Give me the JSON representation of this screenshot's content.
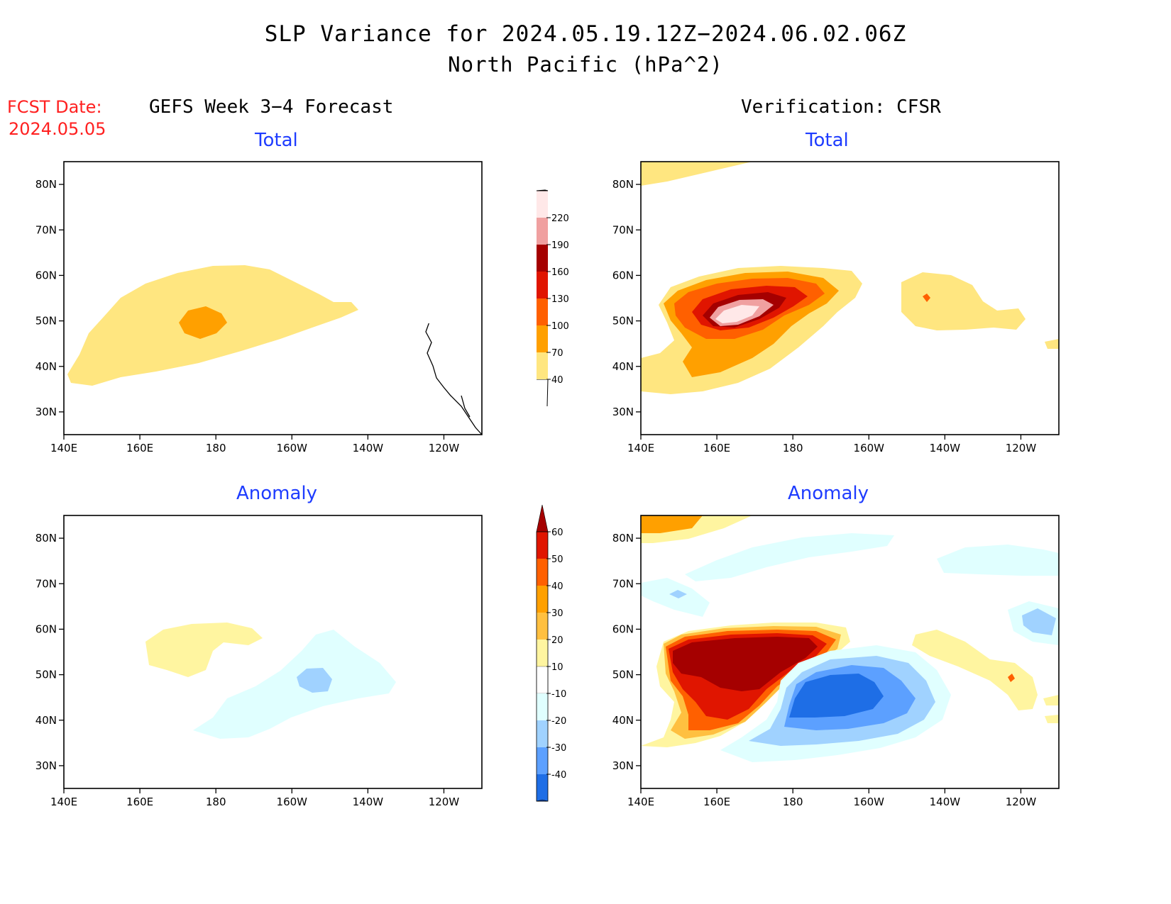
{
  "title_line1": "SLP Variance for 2024.05.19.12Z−2024.06.02.06Z",
  "title_line2": "North Pacific (hPa^2)",
  "fcst_label": "FCST Date:",
  "fcst_date": "2024.05.05",
  "columns": {
    "left": "GEFS Week 3−4 Forecast",
    "right": "Verification: CFSR"
  },
  "panels": [
    {
      "id": "gefs-total",
      "subtitle": "Total"
    },
    {
      "id": "cfsr-total",
      "subtitle": "Total"
    },
    {
      "id": "gefs-anomaly",
      "subtitle": "Anomaly"
    },
    {
      "id": "cfsr-anomaly",
      "subtitle": "Anomaly"
    }
  ],
  "axes": {
    "x_ticks": [
      "140E",
      "160E",
      "180",
      "160W",
      "140W",
      "120W"
    ],
    "y_ticks": [
      "80N",
      "70N",
      "60N",
      "50N",
      "40N",
      "30N"
    ],
    "lon_range": [
      140,
      250
    ],
    "lat_range": [
      25,
      85
    ]
  },
  "colorbars": {
    "total": {
      "levels": [
        40,
        70,
        100,
        130,
        160,
        190,
        220
      ],
      "colors": [
        "#ffe680",
        "#ffa000",
        "#ff6000",
        "#e01500",
        "#a50000",
        "#f0a0a0",
        "#ffe8e8"
      ]
    },
    "anomaly": {
      "levels": [
        60,
        50,
        40,
        30,
        20,
        10,
        -10,
        -20,
        -30,
        -40
      ],
      "colors_top_down": [
        "#a50000",
        "#e01500",
        "#ff6000",
        "#ffa000",
        "#ffc040",
        "#fff5a0",
        "#ffffff",
        "#e0ffff",
        "#a0d2ff",
        "#5ca0ff",
        "#1e6ee6",
        "#1450c8"
      ]
    }
  }
}
